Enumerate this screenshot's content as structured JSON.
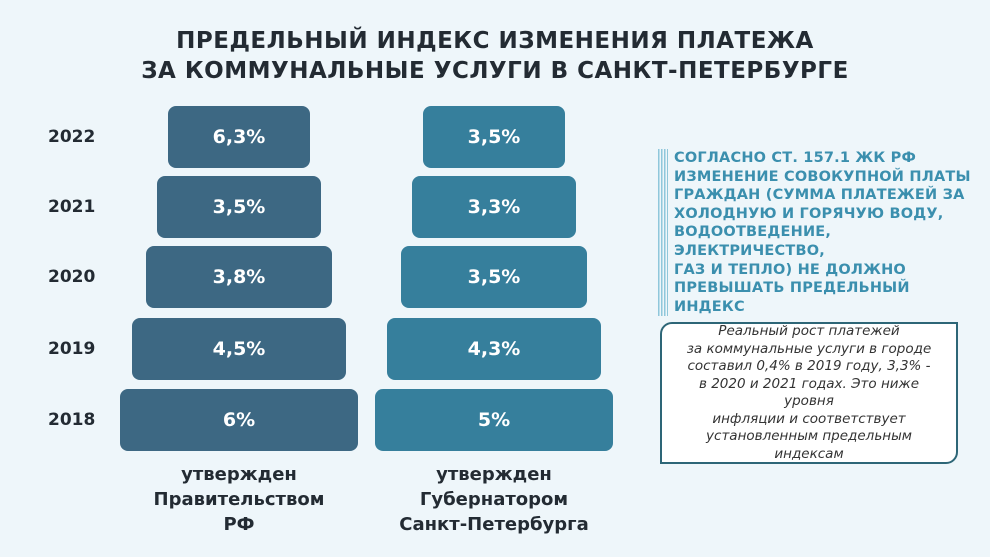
{
  "header": {
    "title_line1": "ПРЕДЕЛЬНЫЙ ИНДЕКС ИЗМЕНЕНИЯ ПЛАТЕЖА",
    "title_line2": "ЗА КОММУНАЛЬНЫЕ УСЛУГИ В САНКТ-ПЕТЕРБУРГЕ"
  },
  "chart_data": {
    "type": "bar",
    "categories": [
      "2022",
      "2021",
      "2020",
      "2019",
      "2018"
    ],
    "series": [
      {
        "name": "утвержден Правительством РФ",
        "values": [
          6.3,
          3.5,
          3.8,
          4.5,
          6
        ],
        "labels": [
          "6,3%",
          "3,5%",
          "3,8%",
          "4,5%",
          "6%"
        ]
      },
      {
        "name": "утвержден Губернатором Санкт-Петербурга",
        "values": [
          3.5,
          3.3,
          3.5,
          4.3,
          5
        ],
        "labels": [
          "3,5%",
          "3,3%",
          "3,5%",
          "4,3%",
          "5%"
        ]
      }
    ],
    "series_labels": [
      [
        "утвержден",
        "Правительством",
        "РФ"
      ],
      [
        "утвержден",
        "Губернатором",
        "Санкт-Петербурга"
      ]
    ],
    "colors": [
      "#3d6883",
      "#367f9c"
    ]
  },
  "notes": {
    "legal": [
      "СОГЛАСНО СТ. 157.1 ЖК РФ",
      "ИЗМЕНЕНИЕ СОВОКУПНОЙ ПЛАТЫ",
      "ГРАЖДАН (СУММА ПЛАТЕЖЕЙ ЗА",
      "ХОЛОДНУЮ И ГОРЯЧУЮ ВОДУ,",
      "ВОДООТВЕДЕНИЕ, ЭЛЕКТРИЧЕСТВО,",
      "ГАЗ И ТЕПЛО) НЕ ДОЛЖНО",
      "ПРЕВЫШАТЬ ПРЕДЕЛЬНЫЙ ИНДЕКС"
    ],
    "real_growth": [
      "Реальный рост платежей",
      "за коммунальные услуги в городе",
      "составил 0,4% в 2019 году, 3,3% -",
      "в 2020 и 2021 годах. Это ниже уровня",
      "инфляции и соответствует",
      "установленным предельным",
      "индексам"
    ]
  }
}
